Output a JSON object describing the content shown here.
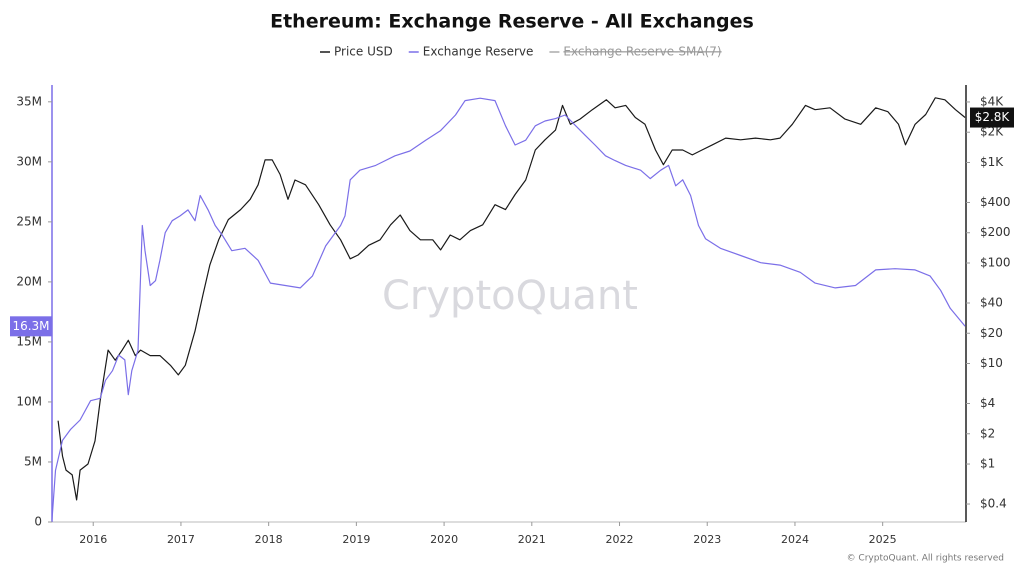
{
  "chart_data": {
    "type": "line",
    "title": "Ethereum: Exchange Reserve - All Exchanges",
    "watermark": "CryptoQuant",
    "footer": "© CryptoQuant. All rights reserved",
    "xlim": [
      2015.53,
      2025.95
    ],
    "xticks": [
      2016,
      2017,
      2018,
      2019,
      2020,
      2021,
      2022,
      2023,
      2024,
      2025
    ],
    "ylim": [
      0,
      36.4
    ],
    "yticks": [
      0,
      {
        "value": 5,
        "label": "5M"
      },
      {
        "value": 10,
        "label": "10M"
      },
      {
        "value": 15,
        "label": "15M"
      },
      {
        "value": 20,
        "label": "20M"
      },
      {
        "value": 25,
        "label": "25M"
      },
      {
        "value": 30,
        "label": "30M"
      },
      {
        "value": 35,
        "label": "35M"
      }
    ],
    "y2lim": [
      0.265,
      5900
    ],
    "y2scale": "log",
    "y2ticks": [
      {
        "value": 0.4,
        "label": "$0.4"
      },
      {
        "value": 1,
        "label": "$1"
      },
      {
        "value": 2,
        "label": "$2"
      },
      {
        "value": 4,
        "label": "$4"
      },
      {
        "value": 10,
        "label": "$10"
      },
      {
        "value": 20,
        "label": "$20"
      },
      {
        "value": 40,
        "label": "$40"
      },
      {
        "value": 100,
        "label": "$100"
      },
      {
        "value": 200,
        "label": "$200"
      },
      {
        "value": 400,
        "label": "$400"
      },
      {
        "value": 1000,
        "label": "$1K"
      },
      {
        "value": 2000,
        "label": "$2K"
      },
      {
        "value": 4000,
        "label": "$4K"
      }
    ],
    "legend_hidden": {
      "name": "Exchange Reserve-SMA(7)",
      "color": "#aaaaaa"
    },
    "series": [
      {
        "name": "Price USD",
        "color": "#1a1a1a",
        "axis": "y2",
        "current_label": "$2.8K",
        "x": [
          2015.6,
          2015.65,
          2015.69,
          2015.76,
          2015.81,
          2015.85,
          2015.94,
          2016.02,
          2016.08,
          2016.17,
          2016.25,
          2016.33,
          2016.4,
          2016.48,
          2016.54,
          2016.65,
          2016.76,
          2016.88,
          2016.97,
          2017.05,
          2017.16,
          2017.25,
          2017.33,
          2017.43,
          2017.54,
          2017.68,
          2017.79,
          2017.88,
          2017.96,
          2018.04,
          2018.13,
          2018.22,
          2018.3,
          2018.42,
          2018.57,
          2018.7,
          2018.82,
          2018.93,
          2019.02,
          2019.14,
          2019.27,
          2019.39,
          2019.5,
          2019.61,
          2019.73,
          2019.87,
          2019.96,
          2020.07,
          2020.18,
          2020.3,
          2020.44,
          2020.58,
          2020.7,
          2020.81,
          2020.93,
          2021.04,
          2021.15,
          2021.27,
          2021.35,
          2021.44,
          2021.55,
          2021.69,
          2021.85,
          2021.95,
          2022.07,
          2022.18,
          2022.29,
          2022.41,
          2022.5,
          2022.6,
          2022.72,
          2022.83,
          2022.94,
          2023.06,
          2023.21,
          2023.38,
          2023.55,
          2023.72,
          2023.83,
          2023.97,
          2024.12,
          2024.23,
          2024.4,
          2024.57,
          2024.75,
          2024.92,
          2025.06,
          2025.18,
          2025.26,
          2025.37,
          2025.49,
          2025.6,
          2025.71,
          2025.83,
          2025.94
        ],
        "values": [
          2.7,
          1.2,
          0.87,
          0.78,
          0.44,
          0.87,
          1.0,
          1.7,
          4.3,
          13.6,
          10.8,
          13.6,
          17,
          12,
          13.6,
          12,
          12,
          9.6,
          7.7,
          9.6,
          21,
          48,
          96,
          170,
          270,
          340,
          430,
          600,
          1060,
          1060,
          760,
          430,
          670,
          600,
          380,
          240,
          170,
          110,
          120,
          150,
          170,
          240,
          300,
          210,
          170,
          170,
          135,
          190,
          170,
          210,
          240,
          380,
          340,
          480,
          670,
          1330,
          1680,
          2100,
          3700,
          2400,
          2700,
          3350,
          4200,
          3500,
          3700,
          2800,
          2400,
          1330,
          950,
          1330,
          1330,
          1190,
          1330,
          1500,
          1750,
          1680,
          1750,
          1680,
          1750,
          2400,
          3700,
          3350,
          3500,
          2700,
          2400,
          3500,
          3200,
          2400,
          1500,
          2400,
          3000,
          4400,
          4200,
          3350,
          2800
        ]
      },
      {
        "name": "Exchange Reserve",
        "color": "#7b6fe8",
        "axis": "y",
        "current_label": "16.3M",
        "x": [
          2015.53,
          2015.57,
          2015.65,
          2015.74,
          2015.85,
          2015.97,
          2016.08,
          2016.14,
          2016.22,
          2016.29,
          2016.36,
          2016.4,
          2016.44,
          2016.51,
          2016.56,
          2016.59,
          2016.65,
          2016.71,
          2016.76,
          2016.82,
          2016.9,
          2016.99,
          2017.08,
          2017.16,
          2017.22,
          2017.31,
          2017.39,
          2017.47,
          2017.58,
          2017.73,
          2017.88,
          2018.02,
          2018.19,
          2018.36,
          2018.5,
          2018.65,
          2018.82,
          2018.87,
          2018.93,
          2019.04,
          2019.22,
          2019.44,
          2019.61,
          2019.79,
          2019.96,
          2020.13,
          2020.24,
          2020.41,
          2020.58,
          2020.7,
          2020.81,
          2020.93,
          2021.04,
          2021.15,
          2021.27,
          2021.38,
          2021.5,
          2021.61,
          2021.72,
          2021.84,
          2021.95,
          2022.07,
          2022.24,
          2022.35,
          2022.47,
          2022.56,
          2022.64,
          2022.72,
          2022.81,
          2022.9,
          2022.98,
          2023.15,
          2023.38,
          2023.61,
          2023.83,
          2024.06,
          2024.23,
          2024.46,
          2024.69,
          2024.92,
          2025.14,
          2025.37,
          2025.54,
          2025.66,
          2025.77,
          2025.94
        ],
        "values": [
          0.2,
          4.3,
          6.8,
          7.7,
          8.5,
          10.1,
          10.3,
          11.8,
          12.6,
          13.9,
          13.5,
          10.6,
          12.6,
          14.3,
          24.7,
          22.6,
          19.7,
          20.1,
          21.8,
          24.1,
          25.1,
          25.5,
          26.0,
          25.1,
          27.2,
          26.0,
          24.7,
          23.9,
          22.6,
          22.8,
          21.8,
          19.9,
          19.7,
          19.5,
          20.5,
          23.0,
          24.7,
          25.5,
          28.5,
          29.3,
          29.7,
          30.5,
          30.9,
          31.8,
          32.6,
          33.9,
          35.1,
          35.3,
          35.1,
          33.0,
          31.4,
          31.8,
          33.0,
          33.4,
          33.6,
          33.9,
          33.0,
          32.2,
          31.4,
          30.5,
          30.1,
          29.7,
          29.3,
          28.6,
          29.3,
          29.7,
          28.0,
          28.5,
          27.2,
          24.7,
          23.6,
          22.8,
          22.2,
          21.6,
          21.4,
          20.8,
          19.9,
          19.5,
          19.7,
          21.0,
          21.1,
          21.0,
          20.5,
          19.3,
          17.8,
          16.3
        ]
      }
    ]
  }
}
